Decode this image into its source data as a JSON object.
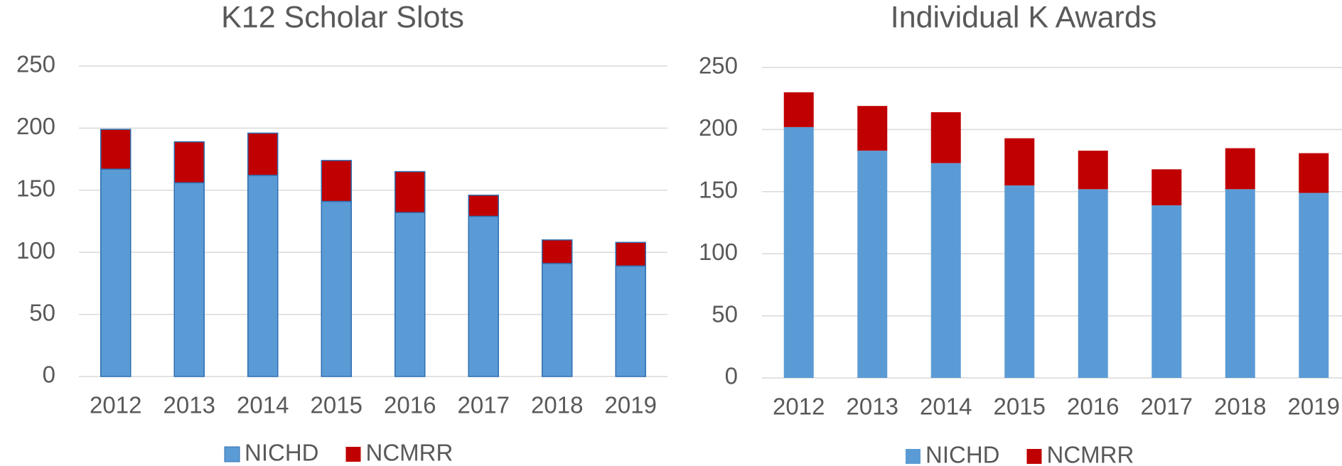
{
  "chart_data": [
    {
      "type": "bar",
      "stacked": true,
      "title": "K12 Scholar Slots",
      "categories": [
        "2012",
        "2013",
        "2014",
        "2015",
        "2016",
        "2017",
        "2018",
        "2019"
      ],
      "series": [
        {
          "name": "NICHD",
          "color": "#5b9bd5",
          "values": [
            167,
            156,
            162,
            141,
            132,
            129,
            91,
            89
          ]
        },
        {
          "name": "NCMRR",
          "color": "#c00000",
          "values": [
            32,
            33,
            34,
            33,
            33,
            17,
            19,
            19
          ]
        }
      ],
      "ylim": [
        0,
        250
      ],
      "yticks": [
        0,
        50,
        100,
        150,
        200,
        250
      ],
      "grid": true,
      "legend": "bottom"
    },
    {
      "type": "bar",
      "stacked": true,
      "title": "Individual K Awards",
      "categories": [
        "2012",
        "2013",
        "2014",
        "2015",
        "2016",
        "2017",
        "2018",
        "2019"
      ],
      "series": [
        {
          "name": "NICHD",
          "color": "#5b9bd5",
          "values": [
            202,
            183,
            173,
            155,
            152,
            139,
            152,
            149
          ]
        },
        {
          "name": "NCMRR",
          "color": "#c00000",
          "values": [
            28,
            36,
            41,
            38,
            31,
            29,
            33,
            32
          ]
        }
      ],
      "ylim": [
        0,
        250
      ],
      "yticks": [
        0,
        50,
        100,
        150,
        200,
        250
      ],
      "grid": true,
      "legend": "bottom"
    }
  ]
}
